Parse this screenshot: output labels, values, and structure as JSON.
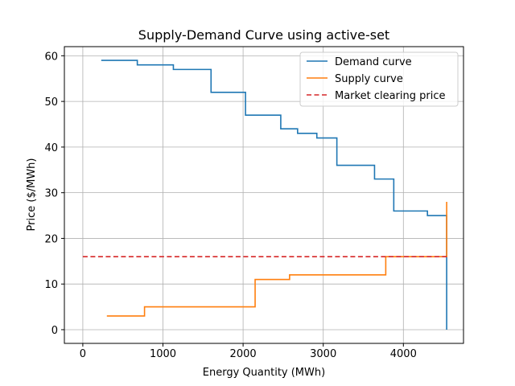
{
  "chart_data": {
    "type": "line",
    "title": "Supply-Demand Curve using active-set",
    "xlabel": "Energy Quantity (MWh)",
    "ylabel": "Price ($/MWh)",
    "xlim": [
      -230,
      4750
    ],
    "ylim": [
      -3,
      62
    ],
    "xticks": [
      0,
      1000,
      2000,
      3000,
      4000
    ],
    "yticks": [
      0,
      10,
      20,
      30,
      40,
      50,
      60
    ],
    "grid": true,
    "legend_position": "top-right",
    "series": [
      {
        "name": "Demand curve",
        "color": "#1f77b4",
        "style": "steps",
        "x": [
          230,
          680,
          1130,
          1600,
          2030,
          2470,
          2680,
          2920,
          3170,
          3640,
          3880,
          4300,
          4300,
          4540,
          4540
        ],
        "y": [
          59,
          58,
          57,
          52,
          47,
          44,
          43,
          42,
          36,
          33,
          26,
          26,
          25,
          25,
          0
        ]
      },
      {
        "name": "Supply curve",
        "color": "#ff7f0e",
        "style": "steps",
        "x": [
          300,
          770,
          2150,
          2580,
          3780,
          4540,
          4540
        ],
        "y": [
          3,
          5,
          11,
          12,
          16,
          16,
          28
        ]
      },
      {
        "name": "Market clearing price",
        "color": "#d62728",
        "style": "dashed",
        "x": [
          0,
          4540
        ],
        "y": [
          16,
          16
        ]
      }
    ]
  }
}
